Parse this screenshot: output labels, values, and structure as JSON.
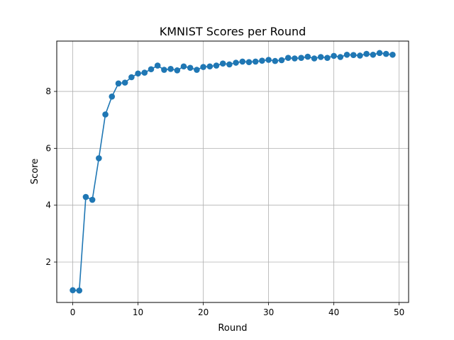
{
  "chart_data": {
    "type": "line",
    "title": "KMNIST Scores per Round",
    "xlabel": "Round",
    "ylabel": "Score",
    "xlim": [
      -2.45,
      51.45
    ],
    "ylim": [
      0.58,
      9.77
    ],
    "xticks": [
      0,
      10,
      20,
      30,
      40,
      50
    ],
    "yticks": [
      2,
      4,
      6,
      8
    ],
    "grid": true,
    "marker": "circle",
    "line_color": "#1f77b4",
    "series": [
      {
        "x": [
          0,
          1,
          2,
          3,
          4,
          5,
          6,
          7,
          8,
          9,
          10,
          11,
          12,
          13,
          14,
          15,
          16,
          17,
          18,
          19,
          20,
          21,
          22,
          23,
          24,
          25,
          26,
          27,
          28,
          29,
          30,
          31,
          32,
          33,
          34,
          35,
          36,
          37,
          38,
          39,
          40,
          41,
          42,
          43,
          44,
          45,
          46,
          47,
          48,
          49
        ],
        "values": [
          1.01,
          1.0,
          4.29,
          4.19,
          5.65,
          7.19,
          7.82,
          8.28,
          8.31,
          8.5,
          8.63,
          8.66,
          8.78,
          8.91,
          8.76,
          8.79,
          8.74,
          8.88,
          8.83,
          8.76,
          8.86,
          8.88,
          8.91,
          8.98,
          8.95,
          9.01,
          9.05,
          9.03,
          9.05,
          9.08,
          9.11,
          9.07,
          9.1,
          9.18,
          9.16,
          9.18,
          9.22,
          9.16,
          9.21,
          9.18,
          9.25,
          9.21,
          9.29,
          9.28,
          9.26,
          9.32,
          9.29,
          9.35,
          9.32,
          9.29
        ]
      }
    ]
  }
}
